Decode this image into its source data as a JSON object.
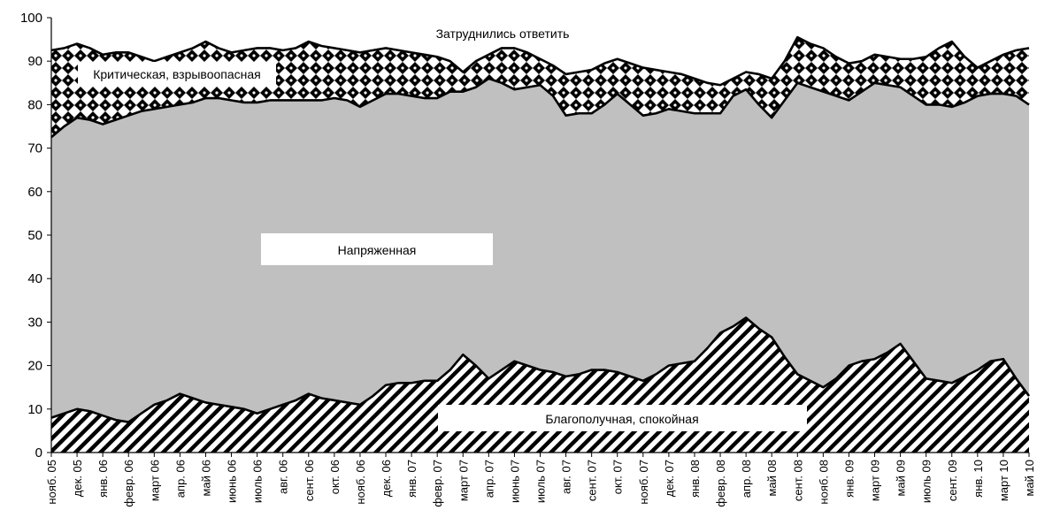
{
  "chart_data": {
    "type": "area",
    "stacked": true,
    "ylim": [
      0,
      100
    ],
    "yticks": [
      0,
      10,
      20,
      30,
      40,
      50,
      60,
      70,
      80,
      90,
      100
    ],
    "grid": false,
    "categories": [
      "нояб. 05",
      "дек. 05",
      "янв. 06",
      "февр. 06",
      "март 06",
      "апр. 06",
      "май 06",
      "июнь 06",
      "июль 06",
      "авг. 06",
      "сент. 06",
      "окт. 06",
      "нояб. 06",
      "дек. 06",
      "янв. 07",
      "февр. 07",
      "март 07",
      "апр. 07",
      "июнь 07",
      "июль 07",
      "авг. 07",
      "сент. 07",
      "окт. 07",
      "нояб. 07",
      "дек. 07",
      "янв. 08",
      "февр. 08",
      "апр. 08",
      "май 08",
      "сент. 08",
      "нояб. 08",
      "янв. 09",
      "март 09",
      "май 09",
      "июль 09",
      "сент. 09",
      "янв. 10",
      "март 10",
      "май 10"
    ],
    "x": [
      0,
      1,
      2,
      3,
      4,
      5,
      6,
      7,
      8,
      9,
      10,
      11,
      12,
      13,
      14,
      15,
      16,
      17,
      18,
      19,
      20,
      21,
      22,
      23,
      24,
      25,
      26,
      27,
      28,
      29,
      30,
      31,
      32,
      33,
      34,
      35,
      36,
      37,
      38,
      39,
      40,
      41,
      42,
      43,
      44,
      45,
      46,
      47,
      48,
      49,
      50,
      51,
      52,
      53,
      54,
      55,
      56,
      57,
      58,
      59,
      60,
      61,
      62,
      63,
      64,
      65,
      66,
      67,
      68,
      69,
      70,
      71,
      72,
      73,
      74,
      75,
      76
    ],
    "tick_x": [
      0,
      2,
      4,
      6,
      8,
      10,
      12,
      14,
      16,
      18,
      20,
      22,
      24,
      26,
      28,
      30,
      32,
      34,
      36,
      38,
      40,
      42,
      44,
      46,
      48,
      50,
      52,
      54,
      56,
      58,
      60,
      62,
      64,
      66,
      68,
      70,
      72,
      74,
      76
    ],
    "cumulative_tops": {
      "blago": [
        8,
        9,
        10,
        9.5,
        8.5,
        7.5,
        7,
        9,
        11,
        12,
        13.5,
        12.5,
        11.5,
        11,
        10.5,
        10,
        9,
        10,
        11,
        12,
        13.5,
        12.5,
        12,
        11.5,
        11,
        13,
        15.5,
        16,
        16,
        16.5,
        16.5,
        19,
        22.5,
        20,
        17,
        19,
        21,
        20,
        19,
        18.5,
        17.5,
        18,
        19,
        19,
        18.5,
        17.5,
        16.5,
        18,
        20,
        20.5,
        21,
        24,
        27.5,
        29,
        31,
        28.5,
        26.5,
        22,
        18,
        16.5,
        15,
        17,
        20,
        21,
        21.5,
        23,
        25,
        21,
        17,
        16.5,
        16,
        17.5,
        19,
        21,
        21.5,
        17,
        13
      ],
      "napr": [
        72.5,
        75,
        77,
        76.5,
        75.5,
        76.5,
        77.5,
        78.5,
        79,
        79.5,
        80,
        80.5,
        81.5,
        81.5,
        81,
        80.5,
        80.5,
        81,
        81,
        81,
        81,
        81,
        81.5,
        81,
        79.5,
        81,
        82.5,
        82.5,
        82,
        81.5,
        81.5,
        83,
        83,
        84,
        86,
        85,
        83.5,
        84,
        84.5,
        82,
        77.5,
        78,
        78,
        80,
        82.5,
        80,
        77.5,
        78,
        79,
        78.5,
        78,
        78,
        78,
        82,
        83.5,
        80,
        77,
        81,
        85,
        84,
        83,
        82,
        81,
        83,
        85,
        84.5,
        84,
        82,
        80,
        80,
        79.5,
        80.5,
        82,
        82.5,
        82.5,
        82,
        80
      ],
      "crit": [
        92.5,
        93,
        94,
        93,
        91.5,
        92,
        92,
        91,
        90,
        91,
        92,
        93,
        94.5,
        93,
        92,
        92.5,
        93,
        93,
        92.5,
        93,
        94.5,
        93.5,
        93,
        92.5,
        92,
        92.5,
        93,
        92.5,
        92,
        91.5,
        91,
        90,
        87.5,
        90,
        91.5,
        93,
        93,
        92,
        90.5,
        89,
        87,
        87.5,
        88,
        89.5,
        90.5,
        89.5,
        88.5,
        88,
        87.5,
        87,
        86,
        85,
        84.5,
        86,
        87.5,
        87,
        86,
        90,
        95.5,
        94,
        93,
        91,
        89.5,
        90,
        91.5,
        91,
        90.5,
        90.5,
        91,
        93,
        94.5,
        91,
        88.5,
        90,
        91.5,
        92.5,
        93
      ],
      "total": [
        100,
        100,
        100,
        100,
        100,
        100,
        100,
        100,
        100,
        100,
        100,
        100,
        100,
        100,
        100,
        100,
        100,
        100,
        100,
        100,
        100,
        100,
        100,
        100,
        100,
        100,
        100,
        100,
        100,
        100,
        100,
        100,
        100,
        100,
        100,
        100,
        100,
        100,
        100,
        100,
        100,
        100,
        100,
        100,
        100,
        100,
        100,
        100,
        100,
        100,
        100,
        100,
        100,
        100,
        100,
        100,
        100,
        100,
        100,
        100,
        100,
        100,
        100,
        100,
        100,
        100,
        100,
        100,
        100,
        100,
        100,
        100,
        100,
        100,
        100,
        100,
        100
      ]
    },
    "series": [
      {
        "key": "blago",
        "name": "Благополучная, спокойная"
      },
      {
        "key": "napr",
        "name": "Напряженная"
      },
      {
        "key": "crit",
        "name": "Критическая, взрывоопасная"
      },
      {
        "key": "total",
        "name": "Затруднились ответить"
      }
    ]
  }
}
